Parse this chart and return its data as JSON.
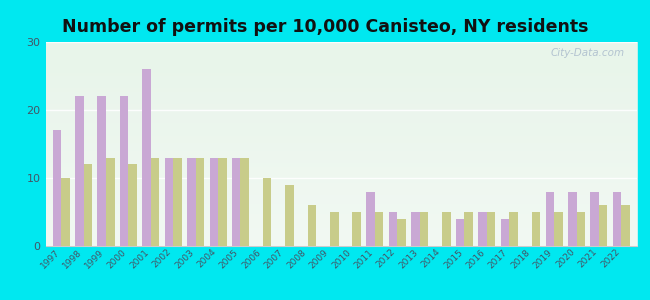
{
  "title": "Number of permits per 10,000 Canisteo, NY residents",
  "years": [
    1997,
    1998,
    1999,
    2000,
    2001,
    2002,
    2003,
    2004,
    2005,
    2006,
    2007,
    2008,
    2009,
    2010,
    2011,
    2012,
    2013,
    2014,
    2015,
    2016,
    2017,
    2018,
    2019,
    2020,
    2021,
    2022
  ],
  "canisteo": [
    17,
    22,
    22,
    22,
    26,
    13,
    13,
    13,
    13,
    0,
    0,
    0,
    0,
    0,
    8,
    5,
    5,
    0,
    4,
    5,
    4,
    0,
    8,
    8,
    8,
    8
  ],
  "ny_avg": [
    10,
    12,
    13,
    12,
    13,
    13,
    13,
    13,
    13,
    10,
    9,
    6,
    5,
    5,
    5,
    4,
    5,
    5,
    5,
    5,
    5,
    5,
    5,
    5,
    6,
    6
  ],
  "canisteo_color": "#c9a8d4",
  "ny_avg_color": "#c8cc8a",
  "background_top": "#d4edda",
  "background_bottom": "#eaf7ed",
  "outer_bg": "#00e8f0",
  "ylim": [
    0,
    30
  ],
  "yticks": [
    0,
    10,
    20,
    30
  ],
  "bar_width": 0.38,
  "title_fontsize": 12.5,
  "watermark": "City-Data.com"
}
